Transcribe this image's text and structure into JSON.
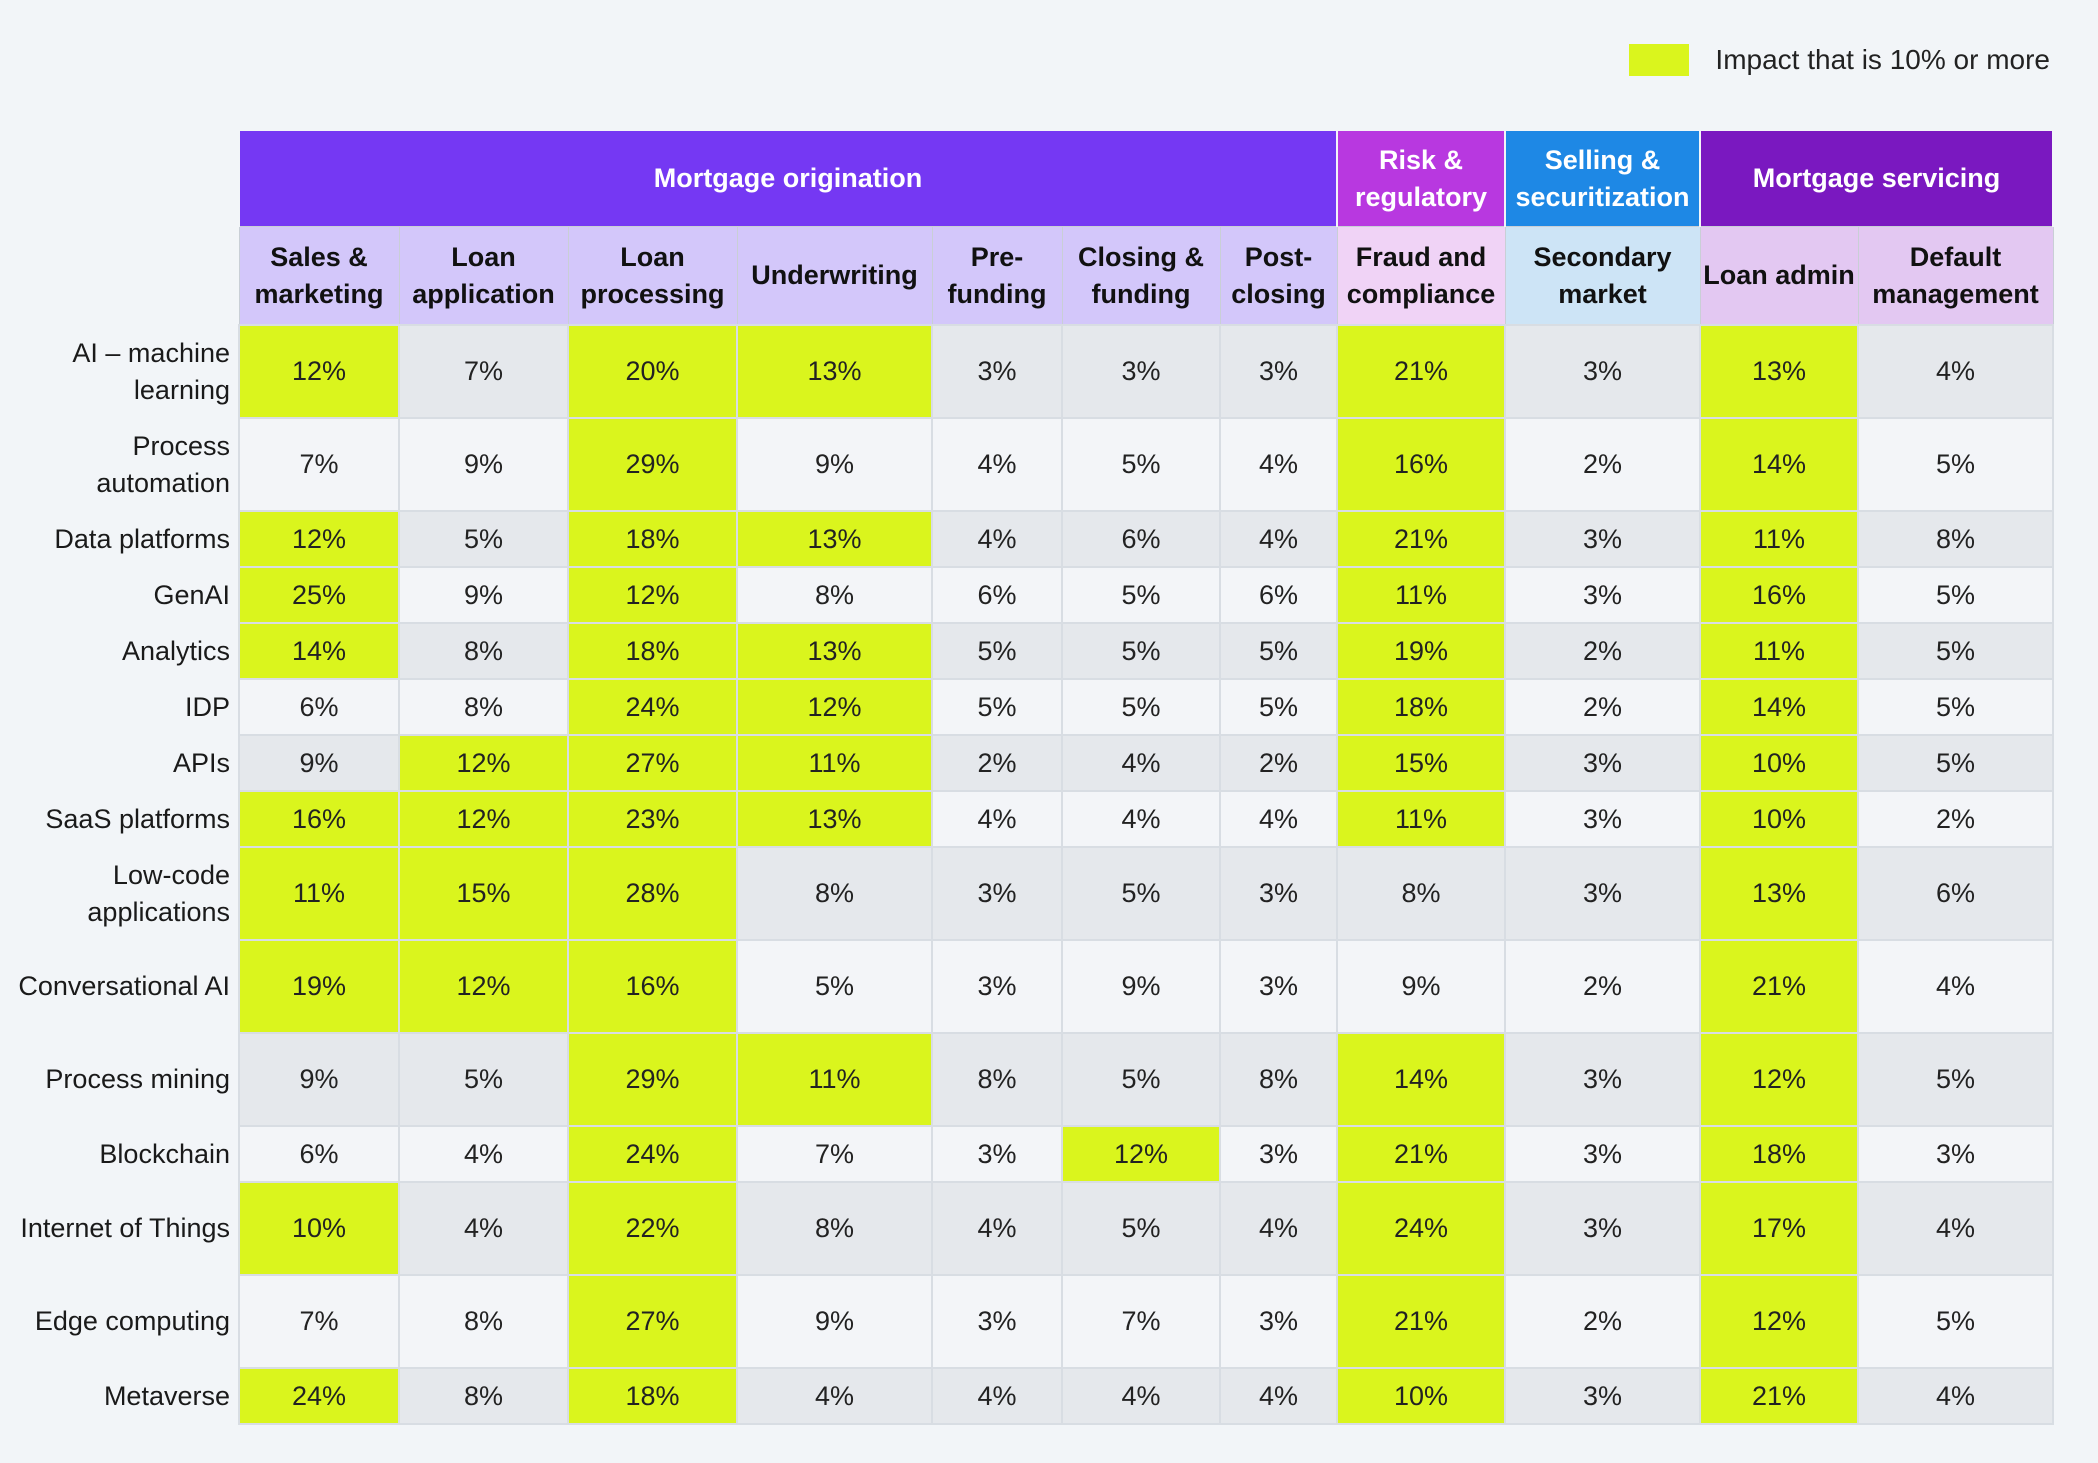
{
  "legend": {
    "label": "Impact that is 10% or more",
    "color": "#daf51d"
  },
  "chart_data": {
    "type": "heatmap",
    "threshold": 10,
    "groups": [
      {
        "name": "Mortgage origination",
        "span": 7,
        "color": "#7538f3",
        "header_bg": "#d3c7fa"
      },
      {
        "name": "Risk & regulatory",
        "span": 1,
        "color": "#b838e0",
        "header_bg": "#f0d3f6"
      },
      {
        "name": "Selling & securitization",
        "span": 1,
        "color": "#1e88e5",
        "header_bg": "#cde4f6"
      },
      {
        "name": "Mortgage servicing",
        "span": 2,
        "color": "#7a18c0",
        "header_bg": "#e3c8f2"
      }
    ],
    "columns": [
      "Sales & marketing",
      "Loan application",
      "Loan processing",
      "Underwriting",
      "Pre-funding",
      "Closing & funding",
      "Post-closing",
      "Fraud and compliance",
      "Secondary market",
      "Loan admin",
      "Default management"
    ],
    "rows": [
      {
        "label": "AI – machine learning",
        "values": [
          12,
          7,
          20,
          13,
          3,
          3,
          3,
          21,
          3,
          13,
          4
        ]
      },
      {
        "label": "Process automation",
        "values": [
          7,
          9,
          29,
          9,
          4,
          5,
          4,
          16,
          2,
          14,
          5
        ]
      },
      {
        "label": "Data platforms",
        "values": [
          12,
          5,
          18,
          13,
          4,
          6,
          4,
          21,
          3,
          11,
          8
        ]
      },
      {
        "label": "GenAI",
        "values": [
          25,
          9,
          12,
          8,
          6,
          5,
          6,
          11,
          3,
          16,
          5
        ]
      },
      {
        "label": "Analytics",
        "values": [
          14,
          8,
          18,
          13,
          5,
          5,
          5,
          19,
          2,
          11,
          5
        ]
      },
      {
        "label": "IDP",
        "values": [
          6,
          8,
          24,
          12,
          5,
          5,
          5,
          18,
          2,
          14,
          5
        ]
      },
      {
        "label": "APIs",
        "values": [
          9,
          12,
          27,
          11,
          2,
          4,
          2,
          15,
          3,
          10,
          5
        ]
      },
      {
        "label": "SaaS platforms",
        "values": [
          16,
          12,
          23,
          13,
          4,
          4,
          4,
          11,
          3,
          10,
          2
        ]
      },
      {
        "label": "Low-code applications",
        "values": [
          11,
          15,
          28,
          8,
          3,
          5,
          3,
          8,
          3,
          13,
          6
        ]
      },
      {
        "label": "Conversational AI",
        "values": [
          19,
          12,
          16,
          5,
          3,
          9,
          3,
          9,
          2,
          21,
          4
        ]
      },
      {
        "label": "Process mining",
        "values": [
          9,
          5,
          29,
          11,
          8,
          5,
          8,
          14,
          3,
          12,
          5
        ]
      },
      {
        "label": "Blockchain",
        "values": [
          6,
          4,
          24,
          7,
          3,
          12,
          3,
          21,
          3,
          18,
          3
        ]
      },
      {
        "label": "Internet of Things",
        "values": [
          10,
          4,
          22,
          8,
          4,
          5,
          4,
          24,
          3,
          17,
          4
        ]
      },
      {
        "label": "Edge computing",
        "values": [
          7,
          8,
          27,
          9,
          3,
          7,
          3,
          21,
          2,
          12,
          5
        ]
      },
      {
        "label": "Metaverse",
        "values": [
          24,
          8,
          18,
          4,
          4,
          4,
          4,
          10,
          3,
          21,
          4
        ]
      }
    ]
  }
}
